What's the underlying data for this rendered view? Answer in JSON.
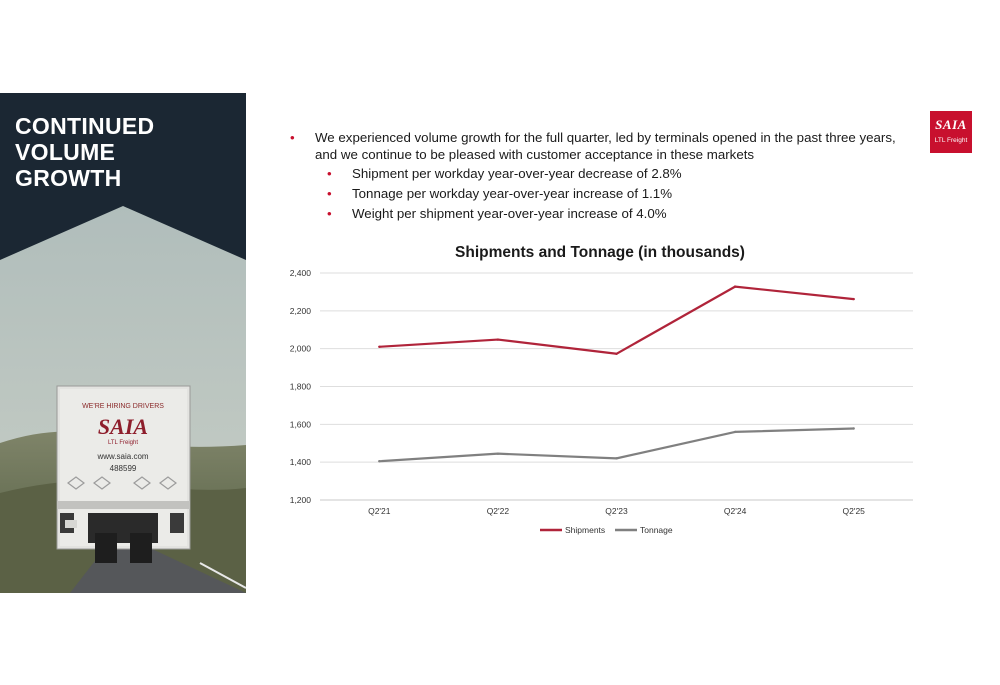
{
  "sidebar": {
    "headline_lines": [
      "CONTINUED",
      "VOLUME",
      "GROWTH"
    ],
    "photo": {
      "banner": "WE'RE HIRING DRIVERS",
      "brand": "SAIA",
      "brand_sub": "LTL Freight",
      "website": "www.saia.com",
      "unit_number": "488599"
    }
  },
  "logo": {
    "brand": "SAIA",
    "sub": "LTL Freight",
    "color": "#c8102e"
  },
  "bullets": {
    "main": "We experienced volume growth for the full quarter, led by terminals opened in the past three years, and we continue to be pleased with customer acceptance in these markets",
    "sub": [
      "Shipment per workday year-over-year decrease of 2.8%",
      "Tonnage per workday year-over-year increase of 1.1%",
      "Weight per shipment year-over-year increase of 4.0%"
    ],
    "bullet_color": "#c8102e"
  },
  "chart_data": {
    "type": "line",
    "title": "Shipments and Tonnage (in thousands)",
    "xlabel": "",
    "ylabel": "",
    "categories": [
      "Q2'21",
      "Q2'22",
      "Q2'23",
      "Q2'24",
      "Q2'25"
    ],
    "series": [
      {
        "name": "Shipments",
        "values": [
          2010,
          2048,
          1973,
          2328,
          2262
        ],
        "color": "#b0243a"
      },
      {
        "name": "Tonnage",
        "values": [
          1405,
          1445,
          1420,
          1560,
          1578
        ],
        "color": "#808080"
      }
    ],
    "ylim": [
      1200,
      2400
    ],
    "yticks": [
      1200,
      1400,
      1600,
      1800,
      2000,
      2200,
      2400
    ],
    "ytick_labels": [
      "1,200",
      "1,400",
      "1,600",
      "1,800",
      "2,000",
      "2,200",
      "2,400"
    ],
    "grid": true,
    "legend_position": "bottom"
  }
}
